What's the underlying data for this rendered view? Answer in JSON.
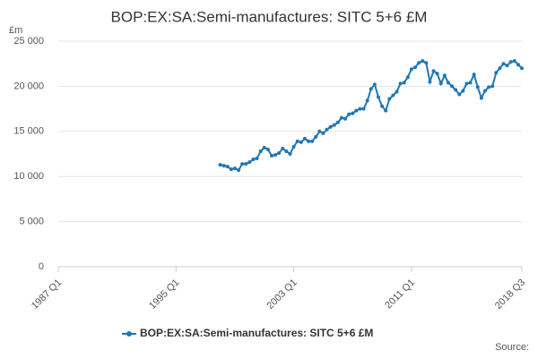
{
  "chart_data": {
    "type": "line",
    "title": "BOP:EX:SA:Semi-manufactures: SITC 5+6 £M",
    "y_unit_label": "£m",
    "source_label": "Source:",
    "categories": [
      "1987 Q1",
      null,
      null,
      null,
      null,
      null,
      null,
      null,
      null,
      null,
      null,
      null,
      null,
      null,
      null,
      null,
      null,
      null,
      null,
      null,
      null,
      null,
      null,
      null,
      null,
      null,
      null,
      null,
      null,
      null,
      null,
      null,
      "1995 Q1",
      null,
      null,
      null,
      null,
      null,
      null,
      null,
      null,
      null,
      null,
      null,
      null,
      null,
      null,
      null,
      null,
      null,
      null,
      null,
      null,
      null,
      null,
      null,
      null,
      null,
      null,
      null,
      null,
      null,
      null,
      null,
      "2003 Q1",
      null,
      null,
      null,
      null,
      null,
      null,
      null,
      null,
      null,
      null,
      null,
      null,
      null,
      null,
      null,
      null,
      null,
      null,
      null,
      null,
      null,
      null,
      null,
      null,
      null,
      null,
      null,
      null,
      null,
      null,
      null,
      "2011 Q1",
      null,
      null,
      null,
      null,
      null,
      null,
      null,
      null,
      null,
      null,
      null,
      null,
      null,
      null,
      null,
      null,
      null,
      null,
      null,
      null,
      null,
      null,
      null,
      null,
      null,
      null,
      null,
      null,
      null,
      "2018 Q3"
    ],
    "series": [
      {
        "name": "BOP:EX:SA:Semi-manufactures: SITC 5+6 £M",
        "color": "#1f77b4",
        "values": [
          null,
          null,
          null,
          null,
          null,
          null,
          null,
          null,
          null,
          null,
          null,
          null,
          null,
          null,
          null,
          null,
          null,
          null,
          null,
          null,
          null,
          null,
          null,
          null,
          null,
          null,
          null,
          null,
          null,
          null,
          null,
          null,
          null,
          null,
          null,
          null,
          null,
          null,
          null,
          null,
          null,
          null,
          null,
          null,
          11300,
          11200,
          11100,
          10800,
          10900,
          10700,
          11400,
          11400,
          11600,
          11900,
          12000,
          12800,
          13200,
          13000,
          12300,
          12400,
          12600,
          13100,
          12800,
          12500,
          13300,
          13900,
          13800,
          14200,
          13900,
          13900,
          14400,
          15000,
          14800,
          15200,
          15500,
          15700,
          16000,
          16500,
          16400,
          16900,
          17000,
          17300,
          17500,
          17500,
          18400,
          19700,
          20200,
          18800,
          17800,
          17300,
          18600,
          19000,
          19400,
          20300,
          20400,
          21000,
          21900,
          22100,
          22600,
          22800,
          22600,
          20500,
          21700,
          21400,
          20300,
          21200,
          20400,
          20000,
          19600,
          19100,
          19500,
          20300,
          20400,
          21300,
          19900,
          18700,
          19500,
          19900,
          20000,
          21500,
          22000,
          22500,
          22300,
          22700,
          22800,
          22400,
          22000
        ]
      }
    ],
    "ylim": [
      0,
      25000
    ],
    "yticks": [
      0,
      {
        "value": 5000,
        "label": "5 000"
      },
      {
        "value": 10000,
        "label": "10 000"
      },
      {
        "value": 15000,
        "label": "15 000"
      },
      {
        "value": 20000,
        "label": "20 000"
      },
      {
        "value": 25000,
        "label": "25 000"
      }
    ],
    "grid": true
  }
}
